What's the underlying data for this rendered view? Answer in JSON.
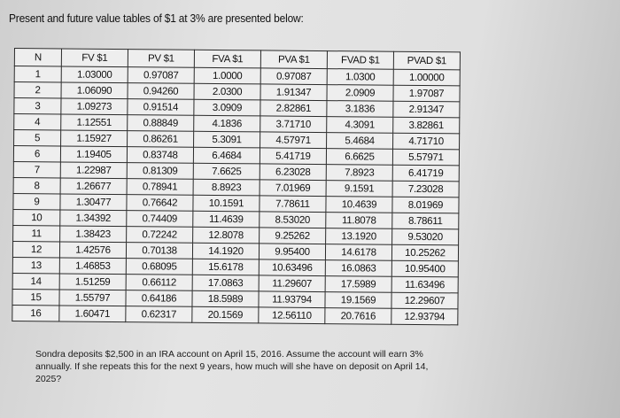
{
  "title": "Present and future value tables of $1 at 3% are presented below:",
  "table": {
    "headers": [
      "N",
      "FV $1",
      "PV $1",
      "FVA $1",
      "PVA $1",
      "FVAD $1",
      "PVAD $1"
    ],
    "rows": [
      [
        "1",
        "1.03000",
        "0.97087",
        "1.0000",
        "0.97087",
        "1.0300",
        "1.00000"
      ],
      [
        "2",
        "1.06090",
        "0.94260",
        "2.0300",
        "1.91347",
        "2.0909",
        "1.97087"
      ],
      [
        "3",
        "1.09273",
        "0.91514",
        "3.0909",
        "2.82861",
        "3.1836",
        "2.91347"
      ],
      [
        "4",
        "1.12551",
        "0.88849",
        "4.1836",
        "3.71710",
        "4.3091",
        "3.82861"
      ],
      [
        "5",
        "1.15927",
        "0.86261",
        "5.3091",
        "4.57971",
        "5.4684",
        "4.71710"
      ],
      [
        "6",
        "1.19405",
        "0.83748",
        "6.4684",
        "5.41719",
        "6.6625",
        "5.57971"
      ],
      [
        "7",
        "1.22987",
        "0.81309",
        "7.6625",
        "6.23028",
        "7.8923",
        "6.41719"
      ],
      [
        "8",
        "1.26677",
        "0.78941",
        "8.8923",
        "7.01969",
        "9.1591",
        "7.23028"
      ],
      [
        "9",
        "1.30477",
        "0.76642",
        "10.1591",
        "7.78611",
        "10.4639",
        "8.01969"
      ],
      [
        "10",
        "1.34392",
        "0.74409",
        "11.4639",
        "8.53020",
        "11.8078",
        "8.78611"
      ],
      [
        "11",
        "1.38423",
        "0.72242",
        "12.8078",
        "9.25262",
        "13.1920",
        "9.53020"
      ],
      [
        "12",
        "1.42576",
        "0.70138",
        "14.1920",
        "9.95400",
        "14.6178",
        "10.25262"
      ],
      [
        "13",
        "1.46853",
        "0.68095",
        "15.6178",
        "10.63496",
        "16.0863",
        "10.95400"
      ],
      [
        "14",
        "1.51259",
        "0.66112",
        "17.0863",
        "11.29607",
        "17.5989",
        "11.63496"
      ],
      [
        "15",
        "1.55797",
        "0.64186",
        "18.5989",
        "11.93794",
        "19.1569",
        "12.29607"
      ],
      [
        "16",
        "1.60471",
        "0.62317",
        "20.1569",
        "12.56110",
        "20.7616",
        "12.93794"
      ]
    ]
  },
  "question": "Sondra deposits $2,500 in an IRA account on April 15, 2016. Assume the account will earn 3% annually. If she repeats this for the next 9 years, how much will she have on deposit on April 14, 2025?"
}
